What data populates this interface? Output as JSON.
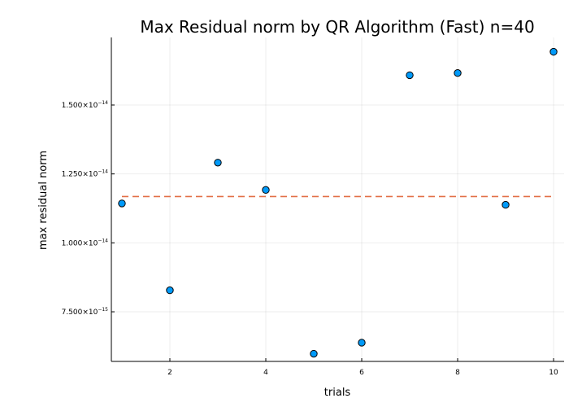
{
  "chart_data": {
    "type": "scatter",
    "title": "Max Residual norm by QR Algorithm (Fast)  n=40",
    "xlabel": "trials",
    "ylabel": "max residual norm",
    "xlim": [
      0.78,
      10.22
    ],
    "ylim": [
      5.7e-15,
      1.745e-14
    ],
    "x_ticks": [
      2,
      4,
      6,
      8,
      10
    ],
    "x_tick_labels": [
      "2",
      "4",
      "6",
      "8",
      "10"
    ],
    "y_ticks": [
      7.5e-15,
      1e-14,
      1.25e-14,
      1.5e-14
    ],
    "y_tick_labels": [
      {
        "mantissa": "7.500×10",
        "exponent": "−15"
      },
      {
        "mantissa": "1.000×10",
        "exponent": "−14"
      },
      {
        "mantissa": "1.250×10",
        "exponent": "−14"
      },
      {
        "mantissa": "1.500×10",
        "exponent": "−14"
      }
    ],
    "grid": true,
    "series": [
      {
        "type": "scatter",
        "x": [
          1,
          2,
          3,
          4,
          5,
          6,
          7,
          8,
          9,
          10
        ],
        "y": [
          1.143e-14,
          8.28e-15,
          1.291e-14,
          1.192e-14,
          5.98e-15,
          6.38e-15,
          1.608e-14,
          1.616e-14,
          1.138e-14,
          1.693e-14
        ],
        "color": "#009af9"
      },
      {
        "type": "line",
        "style": "dashed",
        "x": [
          1,
          10
        ],
        "y": [
          1.168e-14,
          1.168e-14
        ],
        "color": "#e26f46"
      }
    ]
  }
}
